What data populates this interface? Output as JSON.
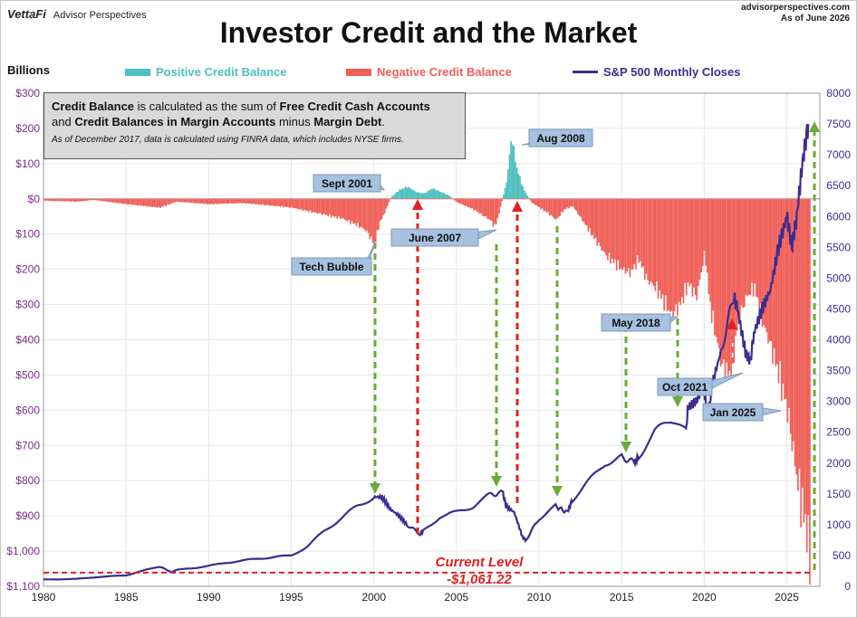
{
  "header": {
    "brand": "VettaFi",
    "brand_sub": "Advisor Perspectives",
    "source": "advisorperspectives.com",
    "as_of": "As of June 2026",
    "title": "Investor Credit and the Market"
  },
  "units_label": "Billions",
  "legend": [
    {
      "label": "Positive Credit Balance",
      "color": "#4fbfbf",
      "kind": "box"
    },
    {
      "label": "Negative Credit Balance",
      "color": "#f06058",
      "kind": "box"
    },
    {
      "label": "S&P 500 Monthly Closes",
      "color": "#3a2d8f",
      "kind": "line"
    }
  ],
  "info": {
    "p1": "Credit Balance",
    "p2": " is calculated as the sum of ",
    "p3": "Free Credit Cash Accounts",
    "p4": "and ",
    "p5": "Credit Balances in Margin Accounts",
    "p6": " minus ",
    "p7": "Margin Debt",
    "p8": ".",
    "note": "As of December 2017, data is calculated using FINRA data, which includes NYSE firms."
  },
  "current_level": {
    "label": "Current Level",
    "value": "-$1,061.22"
  },
  "chart_data": {
    "type": "area",
    "x_ticks": [
      "1980",
      "1985",
      "1990",
      "1995",
      "2000",
      "2005",
      "2010",
      "2015",
      "2020",
      "2025"
    ],
    "xlim": [
      1980,
      2027
    ],
    "left_axis": {
      "label": "Billions",
      "ylim": [
        -1100,
        300
      ],
      "ticks": [
        "$300",
        "$200",
        "$100",
        "$0",
        "$100",
        "$200",
        "$300",
        "$400",
        "$500",
        "$600",
        "$700",
        "$800",
        "$900",
        "$1,000",
        "$1,100"
      ],
      "tick_values": [
        300,
        200,
        100,
        0,
        -100,
        -200,
        -300,
        -400,
        -500,
        -600,
        -700,
        -800,
        -900,
        -1000,
        -1100
      ]
    },
    "right_axis": {
      "ylim": [
        0,
        8000
      ],
      "ticks": [
        "0",
        "500",
        "1000",
        "1500",
        "2000",
        "2500",
        "3000",
        "3500",
        "4000",
        "4500",
        "5000",
        "5500",
        "6000",
        "6500",
        "7000",
        "7500",
        "8000"
      ]
    },
    "credit_balance": {
      "x": [
        1980,
        1982,
        1983,
        1985,
        1987,
        1988,
        1990,
        1992,
        1994,
        1995,
        1996,
        1997,
        1998,
        1999,
        1999.5,
        2000,
        2000.3,
        2000.7,
        2001,
        2001.5,
        2002,
        2002.5,
        2003,
        2003.5,
        2004,
        2004.5,
        2005,
        2006,
        2006.5,
        2007,
        2007.3,
        2007.6,
        2008,
        2008.3,
        2008.6,
        2009,
        2009.5,
        2010,
        2010.5,
        2011,
        2011.5,
        2012,
        2013,
        2014,
        2015,
        2015.5,
        2016,
        2016.5,
        2017,
        2017.5,
        2018,
        2018.5,
        2019,
        2019.5,
        2020,
        2020.3,
        2020.8,
        2021,
        2021.5,
        2021.8,
        2022,
        2022.5,
        2023,
        2023.5,
        2024,
        2024.5,
        2025,
        2025.3,
        2025.6,
        2026,
        2026.2,
        2026.4
      ],
      "values": [
        -5,
        -8,
        -3,
        -15,
        -25,
        -8,
        -15,
        -12,
        -20,
        -25,
        -35,
        -45,
        -55,
        -75,
        -90,
        -130,
        -70,
        -30,
        5,
        25,
        35,
        20,
        15,
        30,
        20,
        10,
        -10,
        -30,
        -45,
        -60,
        -80,
        -30,
        50,
        180,
        90,
        30,
        -10,
        -25,
        -40,
        -60,
        -30,
        -20,
        -90,
        -160,
        -200,
        -210,
        -170,
        -230,
        -250,
        -290,
        -330,
        -300,
        -240,
        -280,
        -150,
        -300,
        -420,
        -470,
        -500,
        -420,
        -350,
        -280,
        -250,
        -350,
        -420,
        -500,
        -600,
        -700,
        -800,
        -900,
        -950,
        -1061.22
      ]
    },
    "sp500": {
      "x": [
        1980,
        1982,
        1983,
        1985,
        1987,
        1987.8,
        1988,
        1990,
        1991,
        1993,
        1995,
        1996,
        1997,
        1998,
        1999,
        2000,
        2000.5,
        2001,
        2001.5,
        2002,
        2002.8,
        2003,
        2004,
        2005,
        2006,
        2007,
        2007.8,
        2008,
        2008.5,
        2009,
        2009.2,
        2010,
        2011,
        2011.7,
        2012,
        2013,
        2014,
        2015,
        2015.8,
        2016,
        2017,
        2018,
        2018.9,
        2019,
        2019.5,
        2020,
        2020.2,
        2020.5,
        2021,
        2021.8,
        2022,
        2022.5,
        2022.8,
        2023,
        2023.5,
        2024,
        2024.5,
        2025,
        2025.3,
        2025.6,
        2026,
        2026.3
      ],
      "values": [
        110,
        120,
        145,
        180,
        320,
        230,
        260,
        330,
        380,
        450,
        500,
        650,
        900,
        1100,
        1300,
        1450,
        1450,
        1250,
        1150,
        1000,
        850,
        900,
        1130,
        1200,
        1300,
        1480,
        1520,
        1300,
        1200,
        800,
        750,
        1100,
        1300,
        1200,
        1400,
        1700,
        2000,
        2100,
        2000,
        2100,
        2500,
        2700,
        2500,
        2900,
        3000,
        3200,
        2700,
        3300,
        3800,
        4700,
        4500,
        3800,
        3650,
        4100,
        4500,
        4800,
        5500,
        6000,
        5500,
        6000,
        7000,
        7500
      ]
    }
  },
  "annotations": [
    {
      "label": "Tech Bubble",
      "tag": "tech-bubble-callout"
    },
    {
      "label": "Sept 2001",
      "tag": "sept-2001-callout"
    },
    {
      "label": "June 2007",
      "tag": "june-2007-callout"
    },
    {
      "label": "Aug 2008",
      "tag": "aug-2008-callout"
    },
    {
      "label": "May 2018",
      "tag": "may-2018-callout"
    },
    {
      "label": "Oct 2021",
      "tag": "oct-2021-callout"
    },
    {
      "label": "Jan 2025",
      "tag": "jan-2025-callout"
    }
  ],
  "colors": {
    "positive": "#4fbfbf",
    "negative": "#f06058",
    "sp500": "#3a2d8f",
    "green_arrow": "#6aaa3a",
    "red_arrow": "#e02020",
    "callout_bg": "#a7c1e0"
  }
}
